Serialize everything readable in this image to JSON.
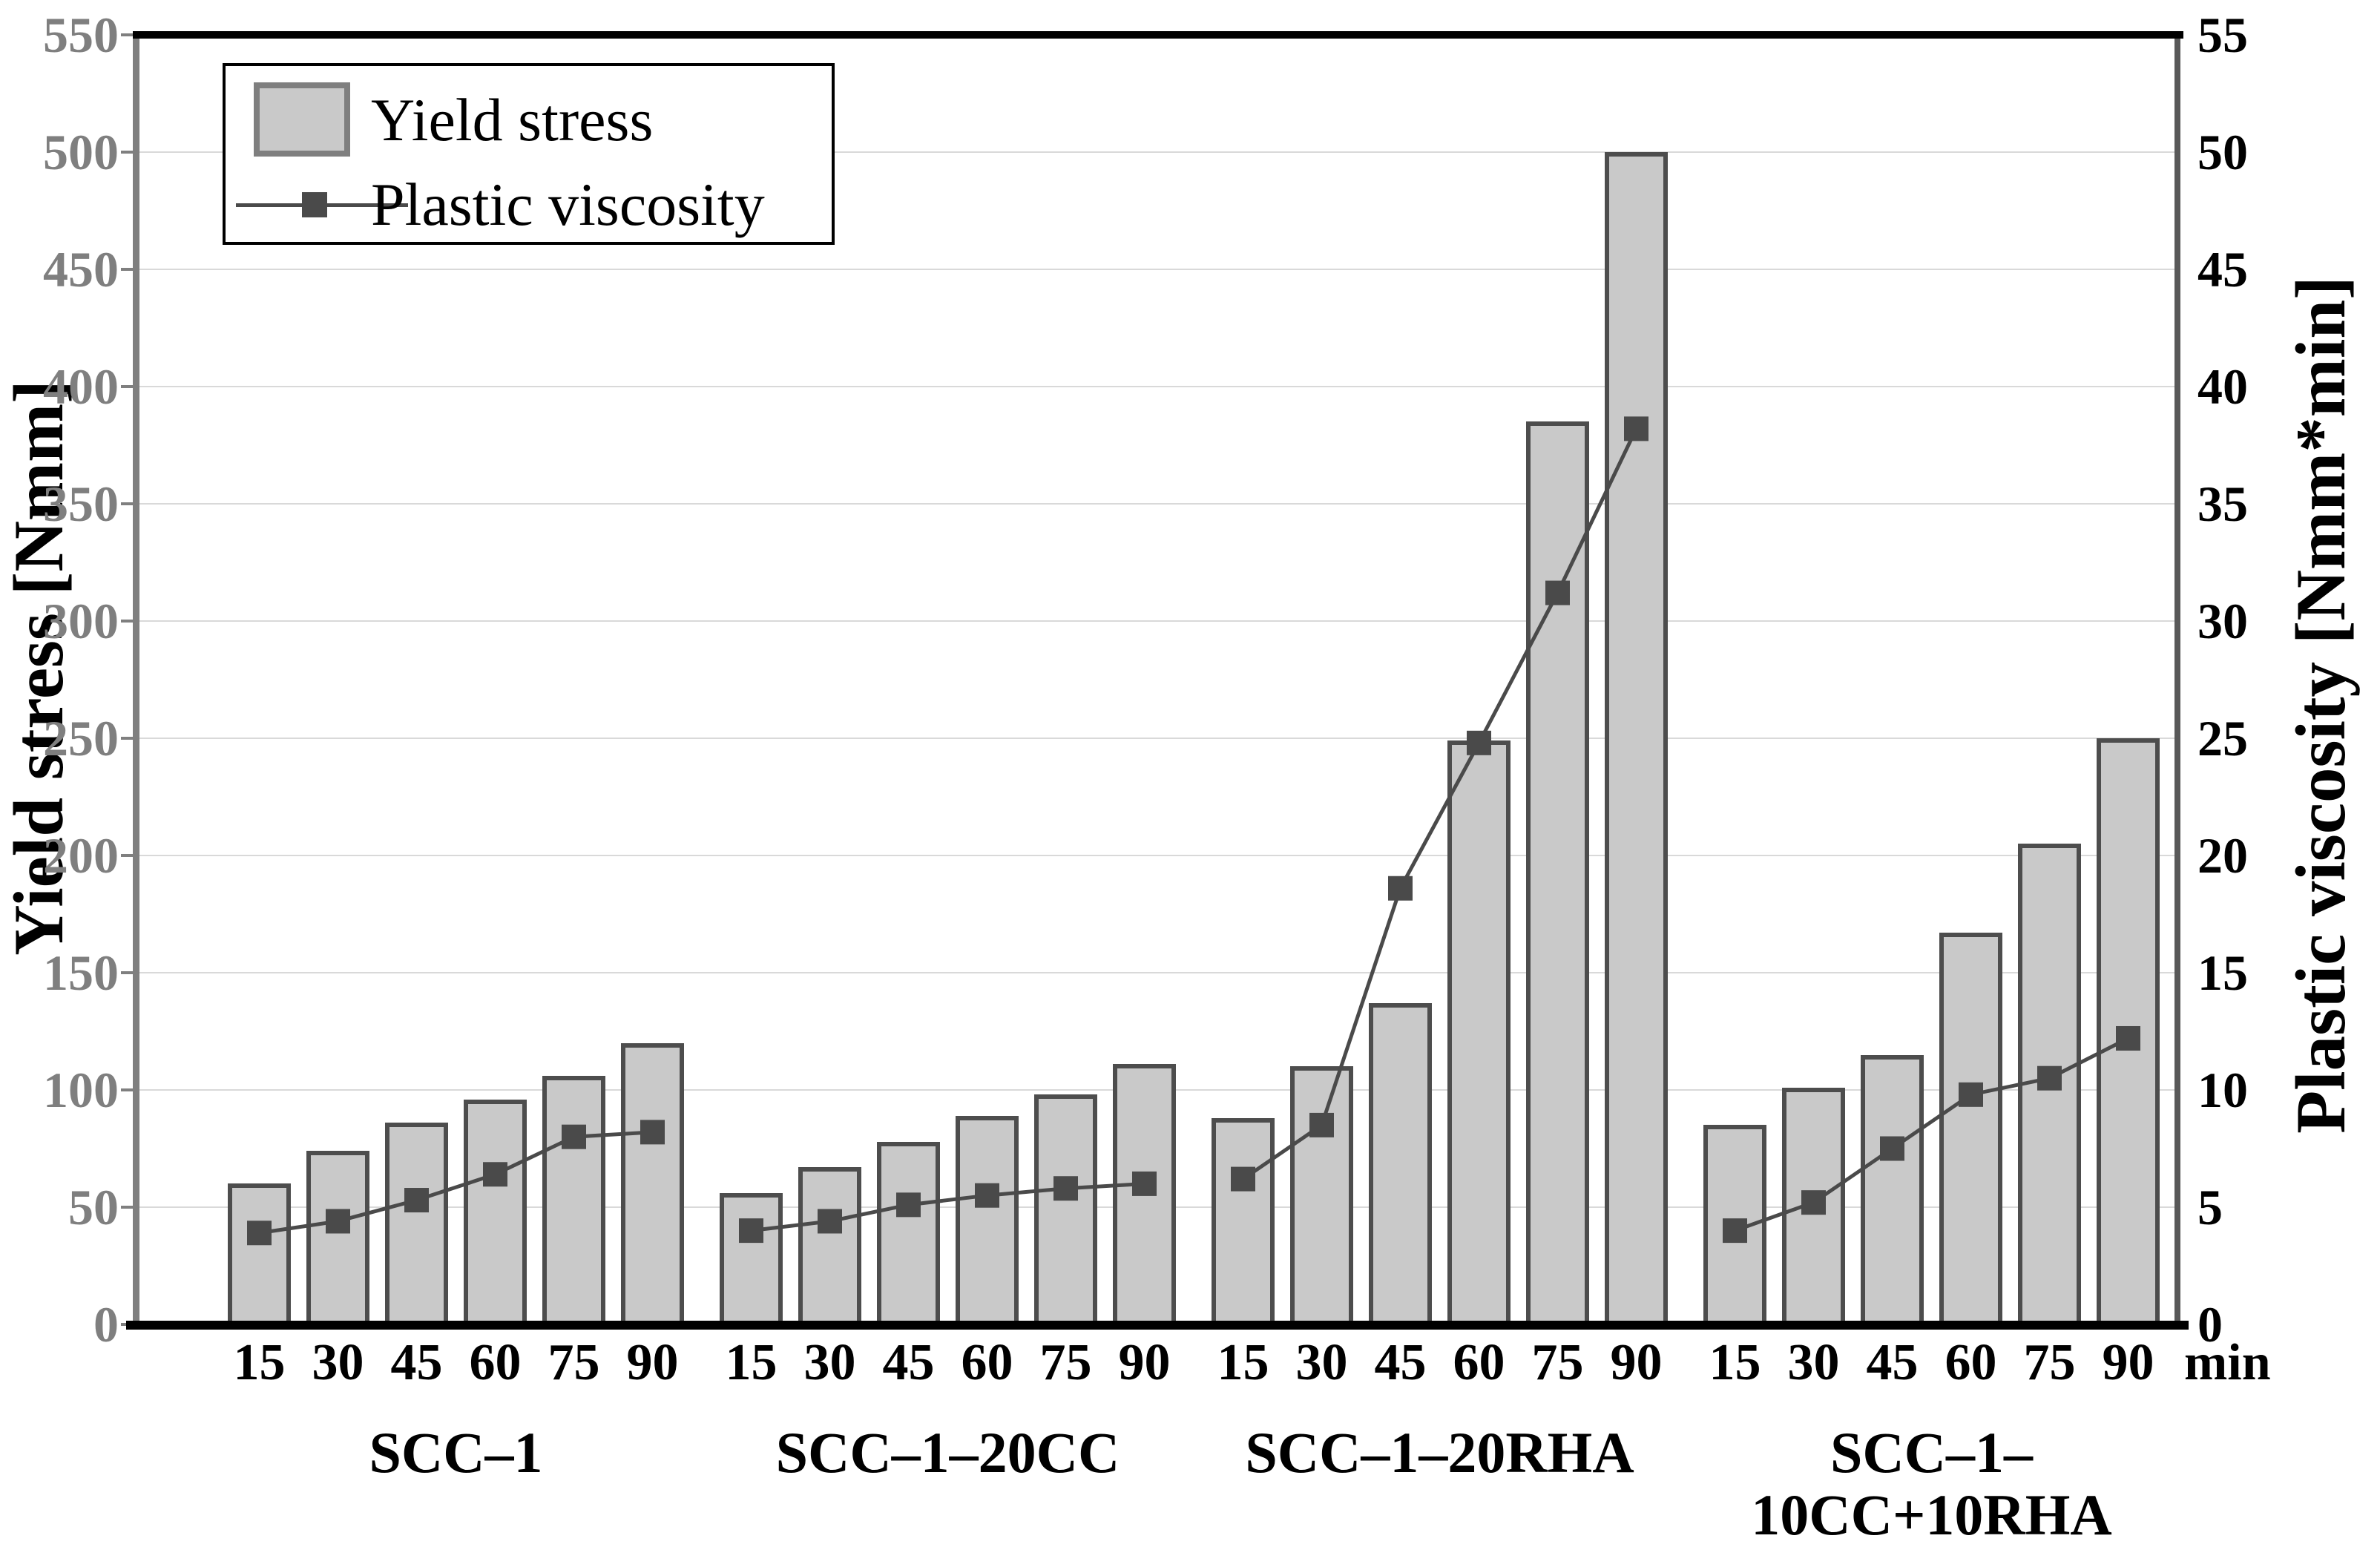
{
  "legend": {
    "yield_label": "Yield stress",
    "viscosity_label": "Plastic viscosity"
  },
  "axes": {
    "left_title": "Yield stress [Nmm]",
    "right_title": "Plastic viscosity [Nmm*min]",
    "x_unit_label": "min"
  },
  "chart_data": {
    "type": "bar+line",
    "title": "",
    "categories_time_min": [
      15,
      30,
      45,
      60,
      75,
      90
    ],
    "x_unit": "min",
    "groups": [
      {
        "label": "SCC–1",
        "yield_stress_Nmm": [
          60,
          74,
          86,
          96,
          106,
          120
        ],
        "plastic_viscosity_Nmm_min": [
          3.9,
          4.4,
          5.3,
          6.4,
          8.0,
          8.2
        ]
      },
      {
        "label": "SCC–1–20CC",
        "yield_stress_Nmm": [
          56,
          67,
          78,
          89,
          98,
          111
        ],
        "plastic_viscosity_Nmm_min": [
          4.0,
          4.4,
          5.1,
          5.5,
          5.8,
          6.0
        ]
      },
      {
        "label": "SCC–1–20RHA",
        "yield_stress_Nmm": [
          88,
          110,
          137,
          249,
          385,
          500
        ],
        "plastic_viscosity_Nmm_min": [
          6.2,
          8.5,
          18.6,
          24.8,
          31.2,
          38.2
        ]
      },
      {
        "label": "SCC–1–10CC+10RHA",
        "yield_stress_Nmm": [
          85,
          101,
          115,
          167,
          205,
          250
        ],
        "plastic_viscosity_Nmm_min": [
          4.0,
          5.2,
          7.5,
          9.8,
          10.5,
          12.2
        ]
      }
    ],
    "left_axis": {
      "title": "Yield stress [Nmm]",
      "min": 0,
      "max": 550,
      "step": 50
    },
    "right_axis": {
      "title": "Plastic viscosity [Nmm*min]",
      "min": 0,
      "max": 55,
      "step": 5
    },
    "legend_position": "top-left",
    "grid": "horizontal",
    "colors": {
      "bar_fill": "#c9c9c9",
      "bar_border": "#4d4d4d",
      "line": "#4a4a4a",
      "marker": "#4a4a4a",
      "gridline": "#d9d9d9",
      "left_axis": "#7f7f7f",
      "right_axis": "#595959",
      "frame": "#000000",
      "left_tick_text": "#7f7f7f",
      "right_tick_text": "#000000"
    }
  }
}
